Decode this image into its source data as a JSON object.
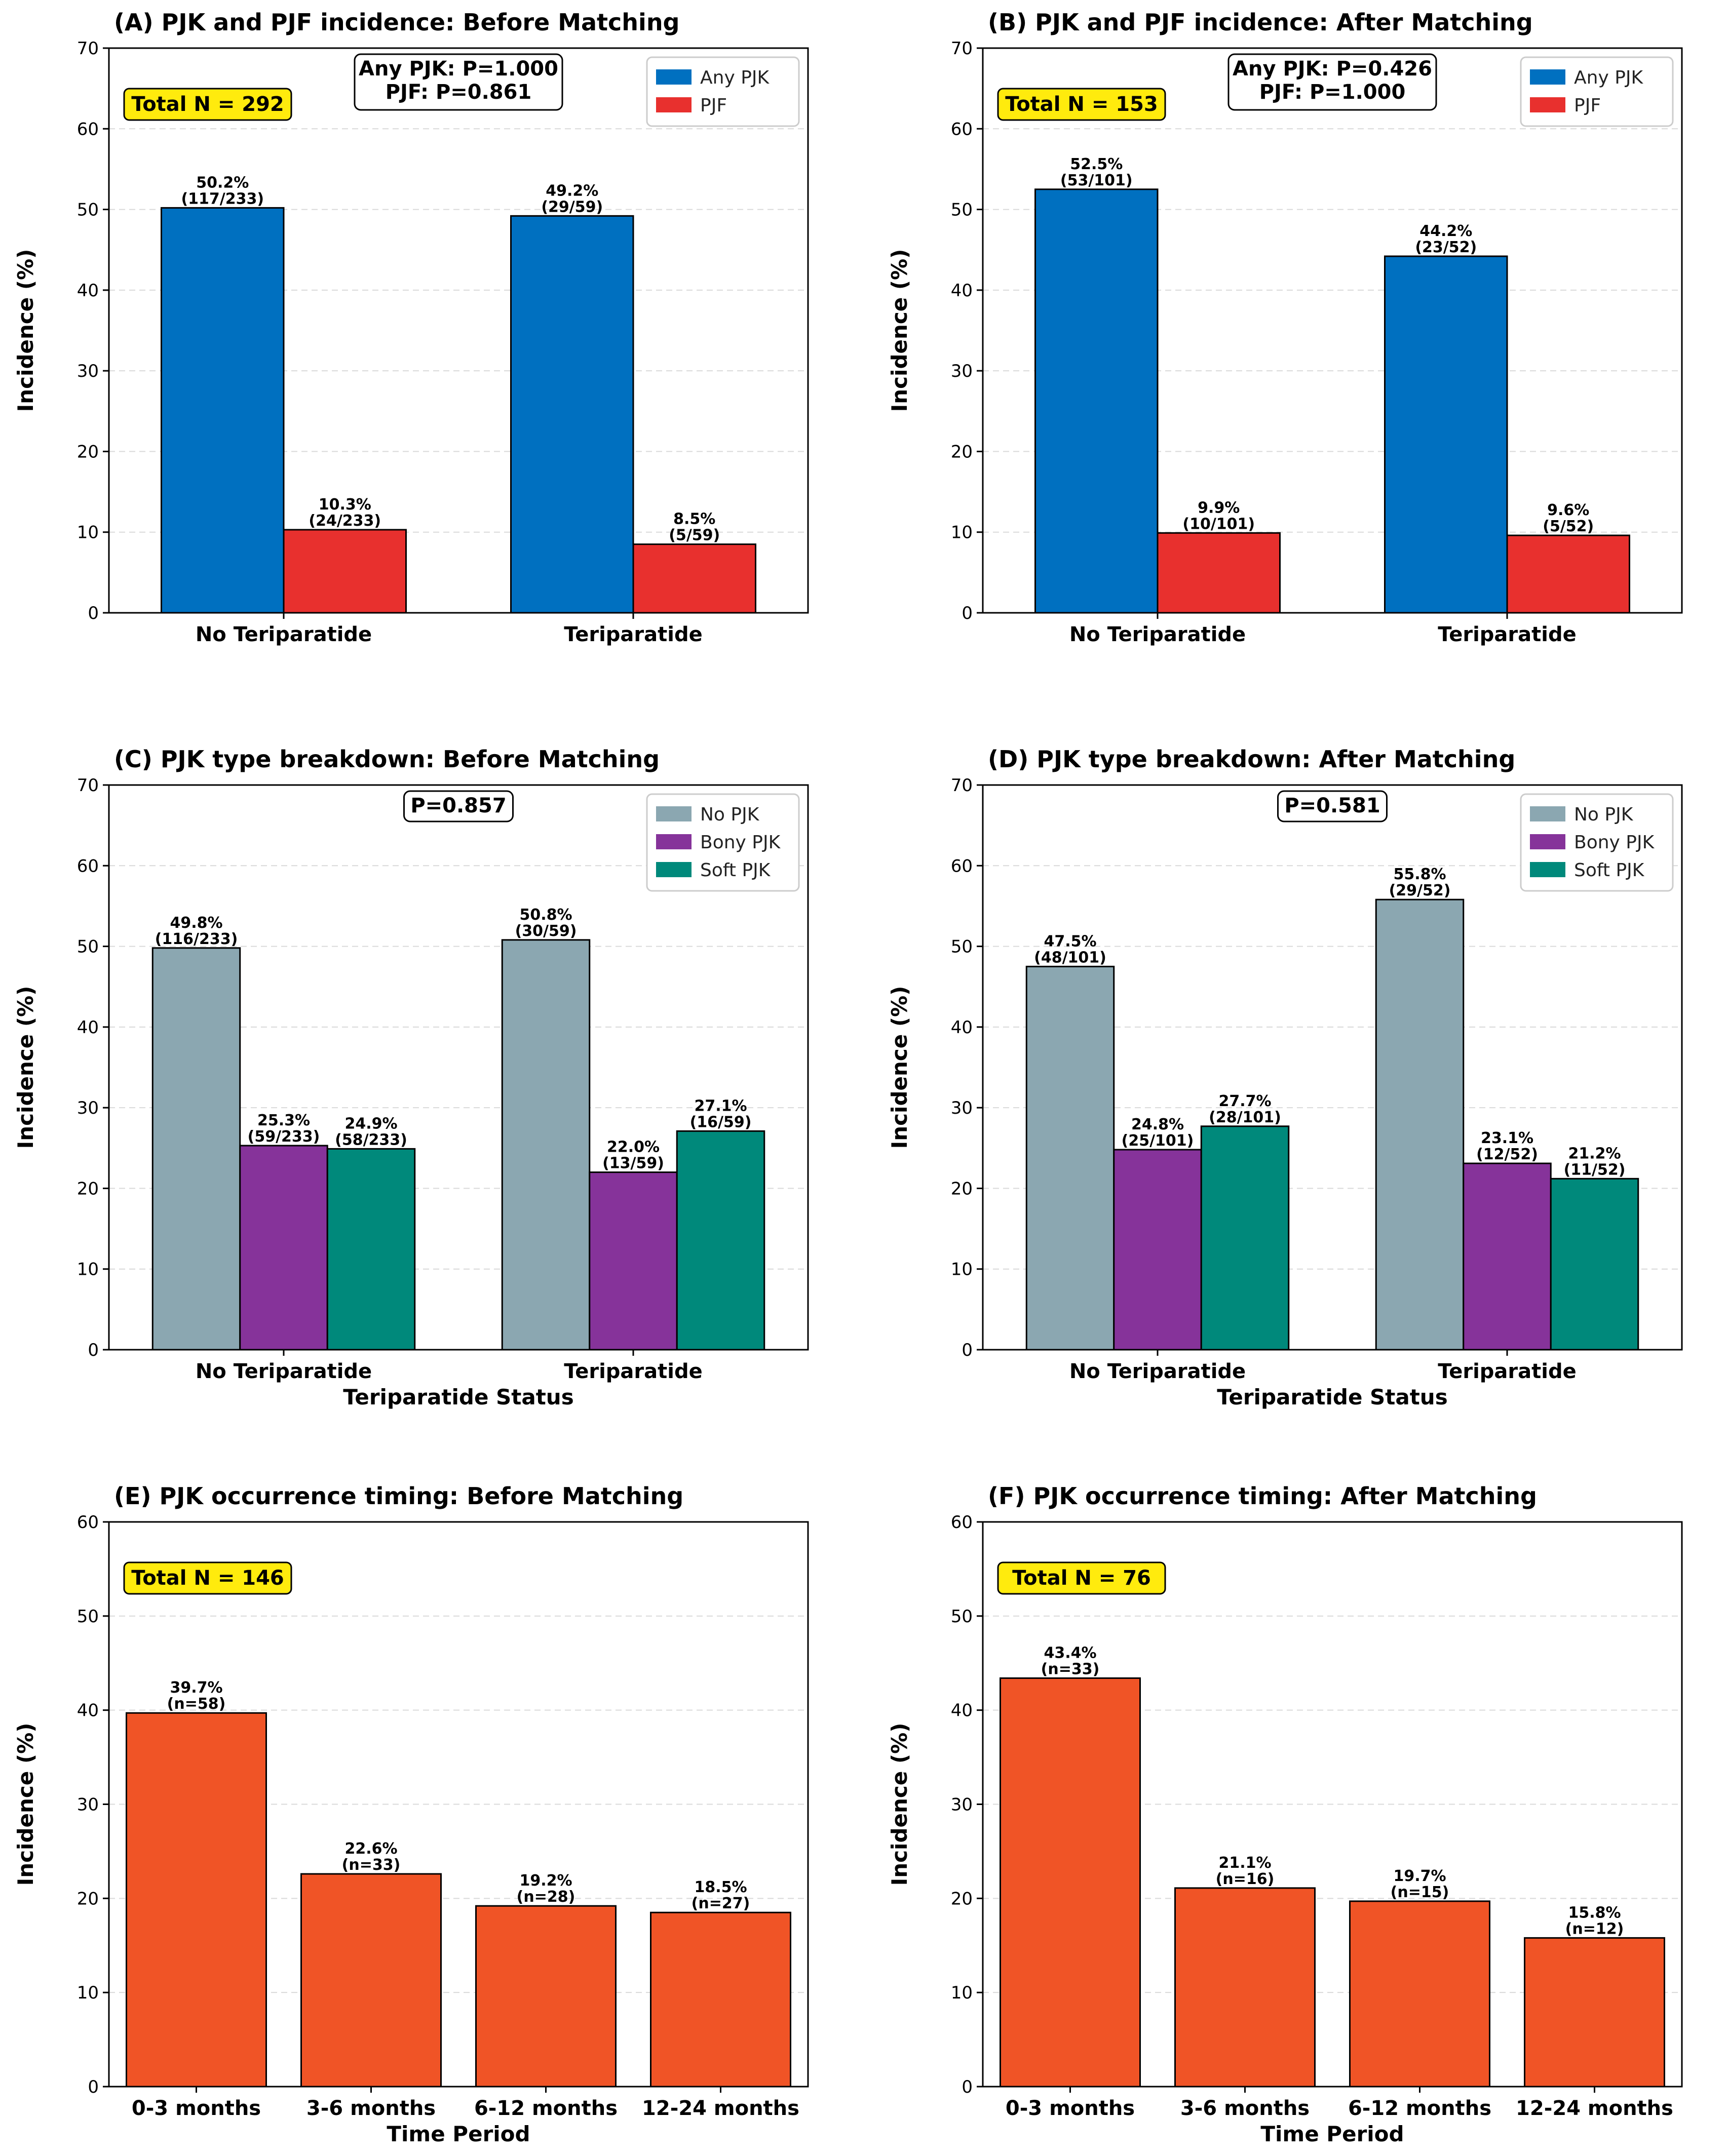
{
  "figure": {
    "colors": {
      "any_pjk": "#0070C0",
      "pjf": "#E8302E",
      "no_pjk": "#8BA7B1",
      "bony_pjk": "#86339A",
      "soft_pjk": "#00897B",
      "timing": "#F05426",
      "total_box": "#FFEB0D"
    }
  },
  "chart_data": [
    {
      "id": "A",
      "type": "bar",
      "title": "(A) PJK and PJF incidence: Before Matching",
      "xlabel": "",
      "ylabel": "Incidence (%)",
      "ylim": [
        0,
        70
      ],
      "yticks": [
        0,
        10,
        20,
        30,
        40,
        50,
        60,
        70
      ],
      "grid": true,
      "categories": [
        "No Teriparatide",
        "Teriparatide"
      ],
      "series": [
        {
          "name": "Any PJK",
          "color": "#0070C0",
          "values": [
            50.2,
            49.2
          ],
          "labels": [
            [
              "50.2%",
              "(117/233)"
            ],
            [
              "49.2%",
              "(29/59)"
            ]
          ]
        },
        {
          "name": "PJF",
          "color": "#E8302E",
          "values": [
            10.3,
            8.5
          ],
          "labels": [
            [
              "10.3%",
              "(24/233)"
            ],
            [
              "8.5%",
              "(5/59)"
            ]
          ]
        }
      ],
      "legend": "top-right",
      "annotation": [
        "Any PJK: P=1.000",
        "PJF: P=0.861"
      ],
      "total": "Total N = 292"
    },
    {
      "id": "B",
      "type": "bar",
      "title": "(B) PJK and PJF incidence: After Matching",
      "xlabel": "",
      "ylabel": "Incidence (%)",
      "ylim": [
        0,
        70
      ],
      "yticks": [
        0,
        10,
        20,
        30,
        40,
        50,
        60,
        70
      ],
      "grid": true,
      "categories": [
        "No Teriparatide",
        "Teriparatide"
      ],
      "series": [
        {
          "name": "Any PJK",
          "color": "#0070C0",
          "values": [
            52.5,
            44.2
          ],
          "labels": [
            [
              "52.5%",
              "(53/101)"
            ],
            [
              "44.2%",
              "(23/52)"
            ]
          ]
        },
        {
          "name": "PJF",
          "color": "#E8302E",
          "values": [
            9.9,
            9.6
          ],
          "labels": [
            [
              "9.9%",
              "(10/101)"
            ],
            [
              "9.6%",
              "(5/52)"
            ]
          ]
        }
      ],
      "legend": "top-right",
      "annotation": [
        "Any PJK: P=0.426",
        "PJF: P=1.000"
      ],
      "total": "Total N = 153"
    },
    {
      "id": "C",
      "type": "bar",
      "title": "(C) PJK type breakdown: Before Matching",
      "xlabel": "Teriparatide Status",
      "ylabel": "Incidence (%)",
      "ylim": [
        0,
        70
      ],
      "yticks": [
        0,
        10,
        20,
        30,
        40,
        50,
        60,
        70
      ],
      "grid": true,
      "categories": [
        "No Teriparatide",
        "Teriparatide"
      ],
      "series": [
        {
          "name": "No PJK",
          "color": "#8BA7B1",
          "values": [
            49.8,
            50.8
          ],
          "labels": [
            [
              "49.8%",
              "(116/233)"
            ],
            [
              "50.8%",
              "(30/59)"
            ]
          ]
        },
        {
          "name": "Bony PJK",
          "color": "#86339A",
          "values": [
            25.3,
            22.0
          ],
          "labels": [
            [
              "25.3%",
              "(59/233)"
            ],
            [
              "22.0%",
              "(13/59)"
            ]
          ]
        },
        {
          "name": "Soft PJK",
          "color": "#00897B",
          "values": [
            24.9,
            27.1
          ],
          "labels": [
            [
              "24.9%",
              "(58/233)"
            ],
            [
              "27.1%",
              "(16/59)"
            ]
          ]
        }
      ],
      "legend": "top-right",
      "annotation": [
        "P=0.857"
      ],
      "total": ""
    },
    {
      "id": "D",
      "type": "bar",
      "title": "(D) PJK type breakdown: After Matching",
      "xlabel": "Teriparatide Status",
      "ylabel": "Incidence (%)",
      "ylim": [
        0,
        70
      ],
      "yticks": [
        0,
        10,
        20,
        30,
        40,
        50,
        60,
        70
      ],
      "grid": true,
      "categories": [
        "No Teriparatide",
        "Teriparatide"
      ],
      "series": [
        {
          "name": "No PJK",
          "color": "#8BA7B1",
          "values": [
            47.5,
            55.8
          ],
          "labels": [
            [
              "47.5%",
              "(48/101)"
            ],
            [
              "55.8%",
              "(29/52)"
            ]
          ]
        },
        {
          "name": "Bony PJK",
          "color": "#86339A",
          "values": [
            24.8,
            23.1
          ],
          "labels": [
            [
              "24.8%",
              "(25/101)"
            ],
            [
              "23.1%",
              "(12/52)"
            ]
          ]
        },
        {
          "name": "Soft PJK",
          "color": "#00897B",
          "values": [
            27.7,
            21.2
          ],
          "labels": [
            [
              "27.7%",
              "(28/101)"
            ],
            [
              "21.2%",
              "(11/52)"
            ]
          ]
        }
      ],
      "legend": "top-right",
      "annotation": [
        "P=0.581"
      ],
      "total": ""
    },
    {
      "id": "E",
      "type": "bar",
      "title": "(E) PJK occurrence timing: Before Matching",
      "xlabel": "Time Period",
      "ylabel": "Incidence (%)",
      "ylim": [
        0,
        60
      ],
      "yticks": [
        0,
        10,
        20,
        30,
        40,
        50,
        60
      ],
      "grid": true,
      "categories": [
        "0-3 months",
        "3-6 months",
        "6-12 months",
        "12-24 months"
      ],
      "series": [
        {
          "color": "#F05426",
          "values": [
            39.7,
            22.6,
            19.2,
            18.5
          ],
          "labels": [
            [
              "39.7%",
              "(n=58)"
            ],
            [
              "22.6%",
              "(n=33)"
            ],
            [
              "19.2%",
              "(n=28)"
            ],
            [
              "18.5%",
              "(n=27)"
            ]
          ]
        }
      ],
      "legend": "",
      "annotation": [],
      "total": "Total N = 146"
    },
    {
      "id": "F",
      "type": "bar",
      "title": "(F) PJK occurrence timing: After Matching",
      "xlabel": "Time Period",
      "ylabel": "Incidence (%)",
      "ylim": [
        0,
        60
      ],
      "yticks": [
        0,
        10,
        20,
        30,
        40,
        50,
        60
      ],
      "grid": true,
      "categories": [
        "0-3 months",
        "3-6 months",
        "6-12 months",
        "12-24 months"
      ],
      "series": [
        {
          "color": "#F05426",
          "values": [
            43.4,
            21.1,
            19.7,
            15.8
          ],
          "labels": [
            [
              "43.4%",
              "(n=33)"
            ],
            [
              "21.1%",
              "(n=16)"
            ],
            [
              "19.7%",
              "(n=15)"
            ],
            [
              "15.8%",
              "(n=12)"
            ]
          ]
        }
      ],
      "legend": "",
      "annotation": [],
      "total": "Total N = 76"
    }
  ]
}
